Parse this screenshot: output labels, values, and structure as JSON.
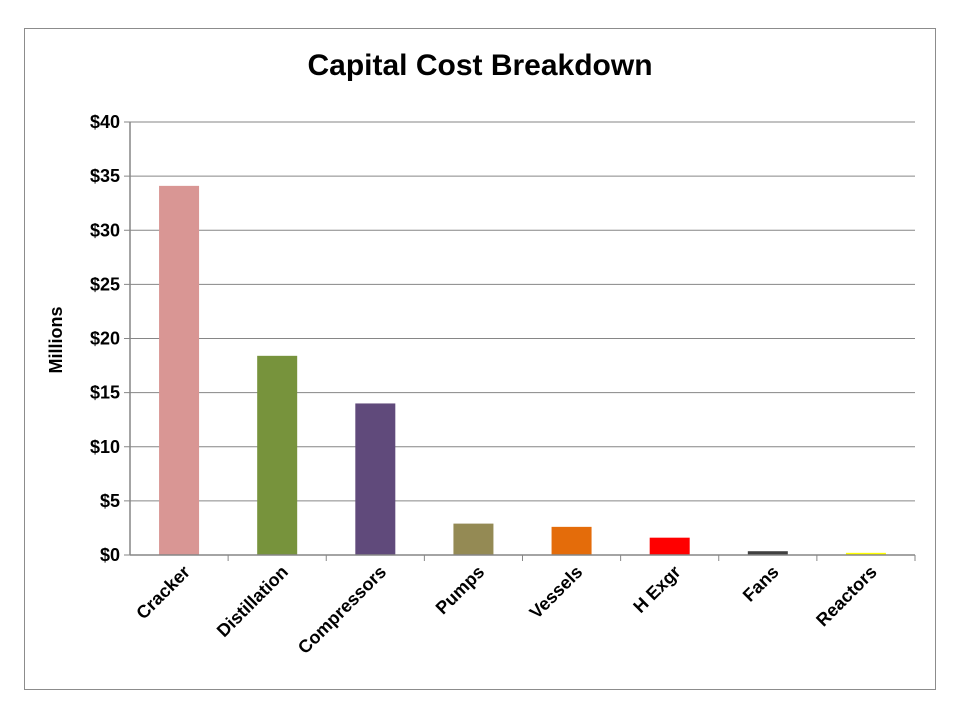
{
  "chart_data": {
    "type": "bar",
    "title": "Capital Cost Breakdown",
    "ylabel": "Millions",
    "xlabel": "",
    "categories": [
      "Cracker",
      "Distillation",
      "Compressors",
      "Pumps",
      "Vessels",
      "H Exgr",
      "Fans",
      "Reactors"
    ],
    "values": [
      34.1,
      18.4,
      14.0,
      2.9,
      2.6,
      1.6,
      0.35,
      0.2
    ],
    "colors": [
      "#d99694",
      "#77933c",
      "#604a7b",
      "#948a54",
      "#e46c0a",
      "#ff0000",
      "#404040",
      "#ffff00"
    ],
    "ylim": [
      0,
      40
    ],
    "yticks": [
      "$0",
      "$5",
      "$10",
      "$15",
      "$20",
      "$25",
      "$30",
      "$35",
      "$40"
    ],
    "ytick_values": [
      0,
      5,
      10,
      15,
      20,
      25,
      30,
      35,
      40
    ],
    "grid": true,
    "legend": "none"
  }
}
